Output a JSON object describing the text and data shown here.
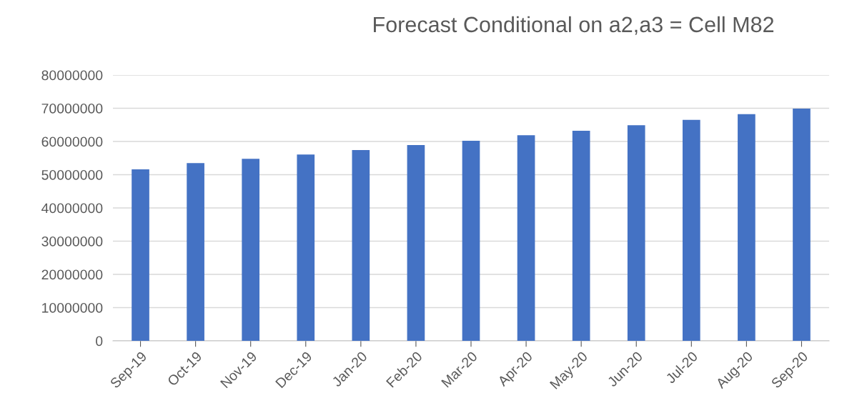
{
  "chart_data": {
    "type": "bar",
    "title": "Forecast Conditional on a2,a3 = Cell M82",
    "categories": [
      "Sep-19",
      "Oct-19",
      "Nov-19",
      "Dec-19",
      "Jan-20",
      "Feb-20",
      "Mar-20",
      "Apr-20",
      "May-20",
      "Jun-20",
      "Jul-20",
      "Aug-20",
      "Sep-20"
    ],
    "values": [
      51600000,
      53500000,
      54800000,
      56100000,
      57400000,
      58900000,
      60200000,
      61900000,
      63200000,
      64900000,
      66500000,
      68200000,
      69900000
    ],
    "color": "#4472c4",
    "ylim": [
      0,
      80000000
    ],
    "yticks": [
      0,
      10000000,
      20000000,
      30000000,
      40000000,
      50000000,
      60000000,
      70000000,
      80000000
    ],
    "grid": "y"
  }
}
